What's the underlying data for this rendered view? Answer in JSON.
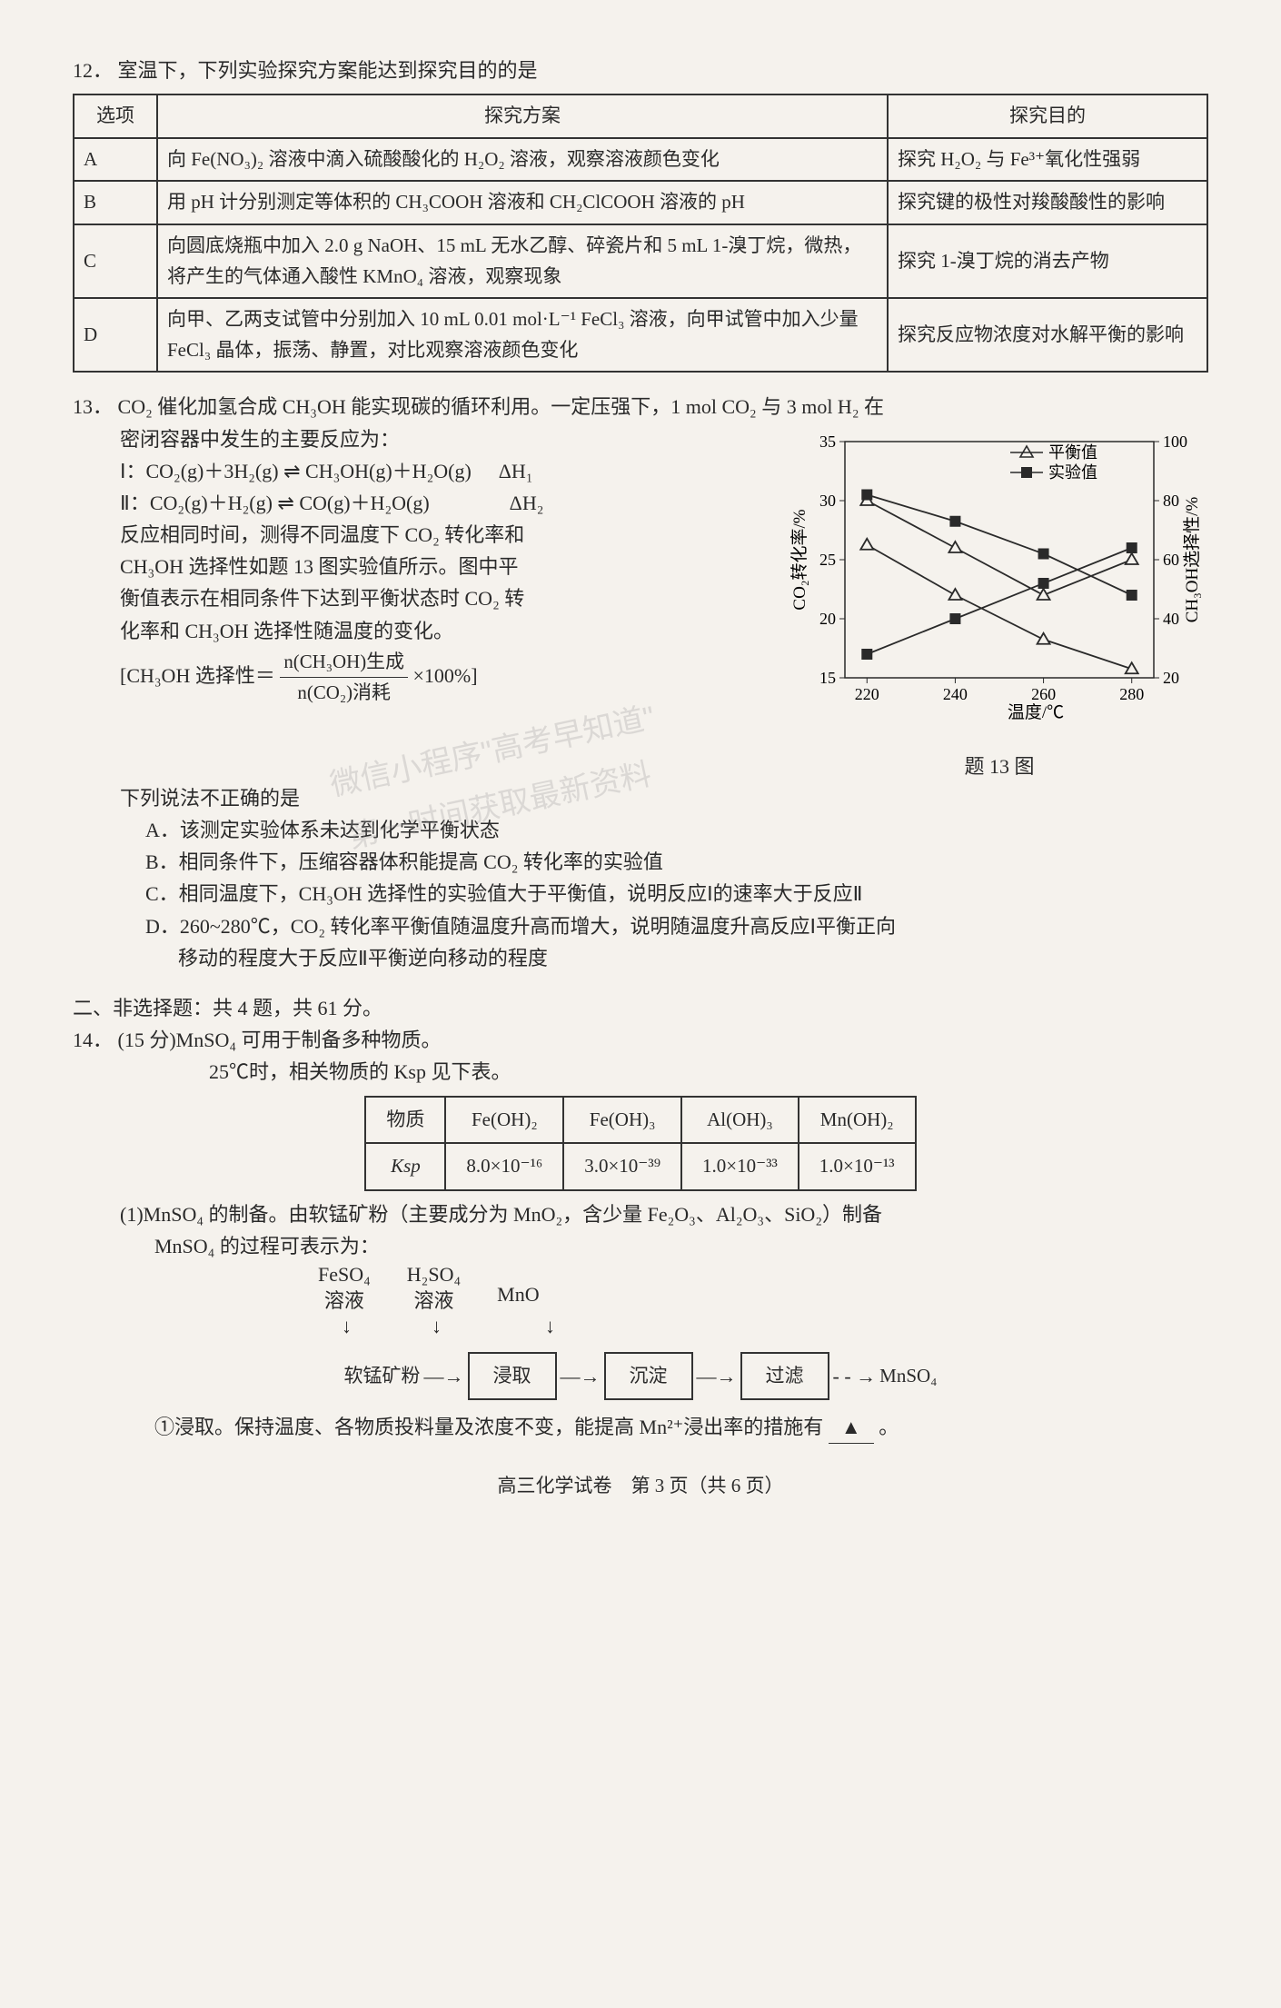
{
  "q12": {
    "num": "12．",
    "stem": "室温下，下列实验探究方案能达到探究目的的是",
    "headers": [
      "选项",
      "探究方案",
      "探究目的"
    ],
    "rows": [
      {
        "opt": "A",
        "plan": "向 Fe(NO₃)₂ 溶液中滴入硫酸酸化的 H₂O₂ 溶液，观察溶液颜色变化",
        "goal": "探究 H₂O₂ 与 Fe³⁺氧化性强弱"
      },
      {
        "opt": "B",
        "plan": "用 pH 计分别测定等体积的 CH₃COOH 溶液和 CH₂ClCOOH 溶液的 pH",
        "goal": "探究键的极性对羧酸酸性的影响"
      },
      {
        "opt": "C",
        "plan": "向圆底烧瓶中加入 2.0 g NaOH、15 mL 无水乙醇、碎瓷片和 5 mL 1-溴丁烷，微热，将产生的气体通入酸性 KMnO₄ 溶液，观察现象",
        "goal": "探究 1-溴丁烷的消去产物"
      },
      {
        "opt": "D",
        "plan": "向甲、乙两支试管中分别加入 10 mL 0.01 mol·L⁻¹ FeCl₃ 溶液，向甲试管中加入少量 FeCl₃ 晶体，振荡、静置，对比观察溶液颜色变化",
        "goal": "探究反应物浓度对水解平衡的影响"
      }
    ]
  },
  "q13": {
    "num": "13．",
    "intro1": "CO₂ 催化加氢合成 CH₃OH 能实现碳的循环利用。一定压强下，1 mol CO₂ 与 3 mol H₂ 在",
    "intro2": "密闭容器中发生的主要反应为：",
    "eq1_left": "Ⅰ：CO₂(g)＋3H₂(g) ⇌ CH₃OH(g)＋H₂O(g)",
    "eq1_dh": "ΔH₁",
    "eq2_left": "Ⅱ：CO₂(g)＋H₂(g) ⇌ CO(g)＋H₂O(g)",
    "eq2_dh": "ΔH₂",
    "para3": "反应相同时间，测得不同温度下 CO₂ 转化率和",
    "para4": "CH₃OH 选择性如题 13 图实验值所示。图中平",
    "para5": "衡值表示在相同条件下达到平衡状态时 CO₂ 转",
    "para6": "化率和 CH₃OH 选择性随温度的变化。",
    "sel_label": "[CH₃OH 选择性＝",
    "frac_num": "n(CH₃OH)生成",
    "frac_den": "n(CO₂)消耗",
    "sel_tail": "×100%]",
    "stem2": "下列说法不正确的是",
    "optA": "A．该测定实验体系未达到化学平衡状态",
    "optB": "B．相同条件下，压缩容器体积能提高 CO₂ 转化率的实验值",
    "optC": "C．相同温度下，CH₃OH 选择性的实验值大于平衡值，说明反应Ⅰ的速率大于反应Ⅱ",
    "optD1": "D．260~280℃，CO₂ 转化率平衡值随温度升高而增大，说明随温度升高反应Ⅰ平衡正向",
    "optD2": "移动的程度大于反应Ⅱ平衡逆向移动的程度",
    "chart": {
      "legend_eq": "平衡值",
      "legend_exp": "实验值",
      "xlabel": "温度/℃",
      "ylabel_left": "CO₂转化率/%",
      "ylabel_right": "CH₃OH选择性/%",
      "caption": "题 13 图",
      "xticks": [
        "220",
        "240",
        "260",
        "280"
      ],
      "left_yticks": [
        "15",
        "20",
        "25",
        "30",
        "35"
      ],
      "right_yticks": [
        "20",
        "40",
        "60",
        "80",
        "100"
      ],
      "series": {
        "eq_tri_co2": {
          "x": [
            220,
            240,
            260,
            280
          ],
          "y": [
            30,
            26,
            22,
            25
          ]
        },
        "eq_tri_ch3oh": {
          "x": [
            220,
            240,
            260,
            280
          ],
          "y_r": [
            65,
            48,
            33,
            23
          ]
        },
        "exp_sq_co2": {
          "x": [
            220,
            240,
            260,
            280
          ],
          "y": [
            17,
            20,
            23,
            26
          ]
        },
        "exp_sq_ch3oh": {
          "x": [
            220,
            240,
            260,
            280
          ],
          "y_r": [
            82,
            73,
            62,
            48
          ]
        }
      },
      "colors": {
        "line": "#2a2a2a",
        "bg": "#f5f2ed"
      }
    }
  },
  "section2": "二、非选择题：共 4 题，共 61 分。",
  "q14": {
    "num": "14．",
    "stem": "(15 分)MnSO₄ 可用于制备多种物质。",
    "line2": "25℃时，相关物质的 Ksp 见下表。",
    "ksp": {
      "head": [
        "物质",
        "Fe(OH)₂",
        "Fe(OH)₃",
        "Al(OH)₃",
        "Mn(OH)₂"
      ],
      "row_label": "Ksp",
      "vals": [
        "8.0×10⁻¹⁶",
        "3.0×10⁻³⁹",
        "1.0×10⁻³³",
        "1.0×10⁻¹³"
      ]
    },
    "p1a": "(1)MnSO₄ 的制备。由软锰矿粉（主要成分为 MnO₂，含少量 Fe₂O₃、Al₂O₃、SiO₂）制备",
    "p1b": "MnSO₄ 的过程可表示为：",
    "flow": {
      "in1a": "FeSO₄",
      "in1b": "溶液",
      "in2a": "H₂SO₄",
      "in2b": "溶液",
      "in3": "MnO",
      "start": "软锰矿粉",
      "box1": "浸取",
      "box2": "沉淀",
      "box3": "过滤",
      "end": "MnSO₄"
    },
    "p1c_a": "①浸取。保持温度、各物质投料量及浓度不变，能提高 Mn²⁺浸出率的措施有",
    "p1c_blank": "▲",
    "p1c_b": "。"
  },
  "footer": "高三化学试卷　第 3 页（共 6 页）",
  "watermark1": "微信小程序\"高考早知道\"",
  "watermark2": "第一时间获取最新资料"
}
